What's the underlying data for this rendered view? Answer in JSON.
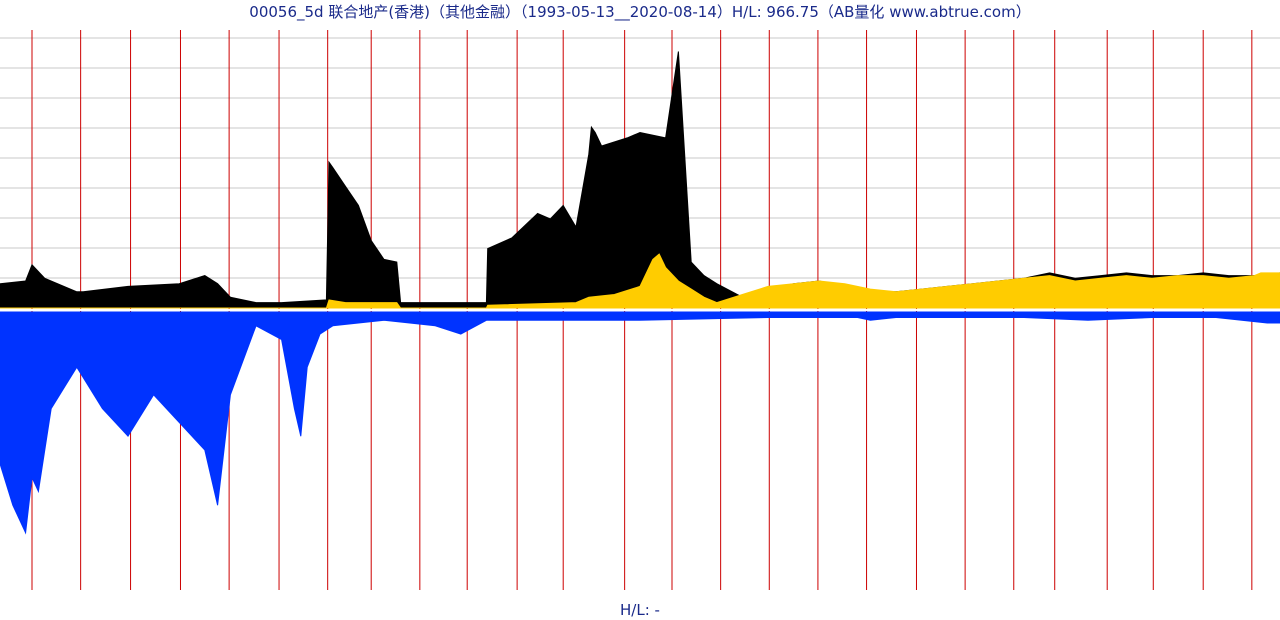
{
  "chart_data": {
    "type": "area",
    "title": "00056_5d 联合地产(香港)（其他金融）（1993-05-13__2020-08-14）H/L: 966.75（AB量化  www.abtrue.com）",
    "footer": "H/L: -",
    "x_range": [
      "1993-05-13",
      "2020-08-14"
    ],
    "grid": true,
    "colors": {
      "upper_series": "#000000",
      "lower_series": "#ffcc00",
      "volume": "#0033ff",
      "volume_accent": "#cc0000",
      "year_lines": "#cc0000",
      "grid": "#c8c8c8",
      "text": "#1a2a8a"
    },
    "series": [
      {
        "name": "",
        "color": "#000000",
        "x": [
          0,
          0.02,
          0.025,
          0.035,
          0.06,
          0.065,
          0.1,
          0.14,
          0.16,
          0.17,
          0.18,
          0.2,
          0.22,
          0.255,
          0.257,
          0.26,
          0.27,
          0.28,
          0.29,
          0.3,
          0.31,
          0.313,
          0.32,
          0.38,
          0.381,
          0.4,
          0.42,
          0.43,
          0.44,
          0.45,
          0.46,
          0.462,
          0.465,
          0.47,
          0.49,
          0.5,
          0.52,
          0.53,
          0.54,
          0.55,
          0.56,
          0.58,
          0.6,
          0.61,
          0.62,
          0.64,
          0.65,
          0.66,
          0.68,
          0.7,
          0.72,
          0.74,
          0.76,
          0.78,
          0.8,
          0.82,
          0.84,
          0.86,
          0.88,
          0.9,
          0.92,
          0.94,
          0.96,
          0.98,
          1.0
        ],
        "values": [
          0.09,
          0.1,
          0.16,
          0.11,
          0.06,
          0.06,
          0.08,
          0.09,
          0.12,
          0.09,
          0.04,
          0.02,
          0.02,
          0.03,
          0.54,
          0.52,
          0.45,
          0.38,
          0.25,
          0.18,
          0.17,
          0.02,
          0.02,
          0.02,
          0.22,
          0.26,
          0.35,
          0.33,
          0.38,
          0.3,
          0.57,
          0.67,
          0.65,
          0.6,
          0.63,
          0.65,
          0.63,
          0.95,
          0.17,
          0.12,
          0.09,
          0.04,
          0.05,
          0.08,
          0.09,
          0.1,
          0.09,
          0.07,
          0.06,
          0.06,
          0.07,
          0.08,
          0.09,
          0.1,
          0.11,
          0.13,
          0.11,
          0.12,
          0.13,
          0.12,
          0.12,
          0.13,
          0.12,
          0.12,
          0.13
        ]
      },
      {
        "name": "",
        "color": "#ffcc00",
        "x": [
          0,
          0.255,
          0.257,
          0.27,
          0.31,
          0.313,
          0.38,
          0.381,
          0.45,
          0.46,
          0.48,
          0.5,
          0.51,
          0.515,
          0.52,
          0.53,
          0.54,
          0.55,
          0.56,
          0.58,
          0.6,
          0.62,
          0.64,
          0.66,
          0.68,
          0.7,
          0.72,
          0.74,
          0.76,
          0.78,
          0.8,
          0.82,
          0.84,
          0.86,
          0.88,
          0.9,
          0.92,
          0.94,
          0.96,
          0.98,
          0.985,
          1.0
        ],
        "values": [
          0.0,
          0.0,
          0.03,
          0.02,
          0.02,
          0.0,
          0.0,
          0.01,
          0.02,
          0.04,
          0.05,
          0.08,
          0.18,
          0.2,
          0.15,
          0.1,
          0.07,
          0.04,
          0.02,
          0.05,
          0.08,
          0.09,
          0.1,
          0.09,
          0.07,
          0.06,
          0.07,
          0.08,
          0.09,
          0.1,
          0.11,
          0.12,
          0.1,
          0.11,
          0.12,
          0.11,
          0.12,
          0.12,
          0.11,
          0.12,
          0.13,
          0.13
        ]
      },
      {
        "name": "",
        "color": "#0033ff",
        "x": [
          0,
          0.01,
          0.02,
          0.025,
          0.03,
          0.04,
          0.06,
          0.08,
          0.1,
          0.12,
          0.14,
          0.16,
          0.17,
          0.18,
          0.2,
          0.22,
          0.23,
          0.235,
          0.24,
          0.25,
          0.26,
          0.3,
          0.34,
          0.36,
          0.38,
          0.4,
          0.5,
          0.6,
          0.67,
          0.68,
          0.7,
          0.8,
          0.85,
          0.9,
          0.95,
          0.99,
          1.0
        ],
        "values": [
          0.55,
          0.7,
          0.8,
          0.6,
          0.65,
          0.35,
          0.2,
          0.35,
          0.45,
          0.3,
          0.4,
          0.5,
          0.7,
          0.3,
          0.05,
          0.1,
          0.35,
          0.45,
          0.2,
          0.08,
          0.05,
          0.03,
          0.05,
          0.08,
          0.03,
          0.03,
          0.03,
          0.02,
          0.02,
          0.03,
          0.02,
          0.02,
          0.03,
          0.02,
          0.02,
          0.04,
          0.04
        ]
      }
    ],
    "year_line_positions": [
      0.025,
      0.063,
      0.102,
      0.141,
      0.179,
      0.218,
      0.256,
      0.29,
      0.328,
      0.365,
      0.404,
      0.44,
      0.488,
      0.525,
      0.563,
      0.601,
      0.639,
      0.677,
      0.716,
      0.754,
      0.792,
      0.824,
      0.865,
      0.901,
      0.94,
      0.978
    ]
  }
}
